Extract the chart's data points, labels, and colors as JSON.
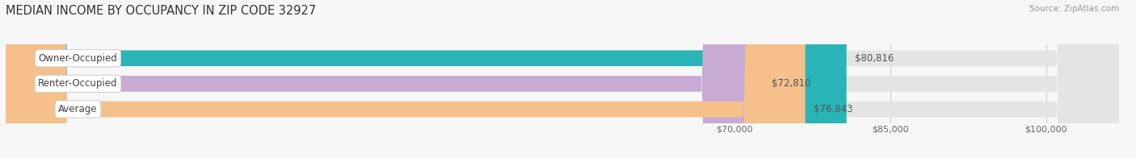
{
  "title": "MEDIAN INCOME BY OCCUPANCY IN ZIP CODE 32927",
  "source": "Source: ZipAtlas.com",
  "categories": [
    "Owner-Occupied",
    "Renter-Occupied",
    "Average"
  ],
  "values": [
    80816,
    72810,
    76843
  ],
  "bar_colors": [
    "#29b5b5",
    "#c9aad4",
    "#f5c08a"
  ],
  "value_labels": [
    "$80,816",
    "$72,810",
    "$76,843"
  ],
  "xmin": 0,
  "xmax": 107000,
  "xticks": [
    70000,
    85000,
    100000
  ],
  "xtick_labels": [
    "$70,000",
    "$85,000",
    "$100,000"
  ],
  "bar_height": 0.62,
  "background_color": "#f7f7f7",
  "bar_bg_color": "#e4e4e4",
  "title_fontsize": 10.5,
  "label_fontsize": 8.5,
  "tick_fontsize": 8,
  "source_fontsize": 7.5,
  "grid_color": "#cccccc",
  "label_box_color": "white",
  "label_text_color": "#444444",
  "value_text_color": "#555555"
}
